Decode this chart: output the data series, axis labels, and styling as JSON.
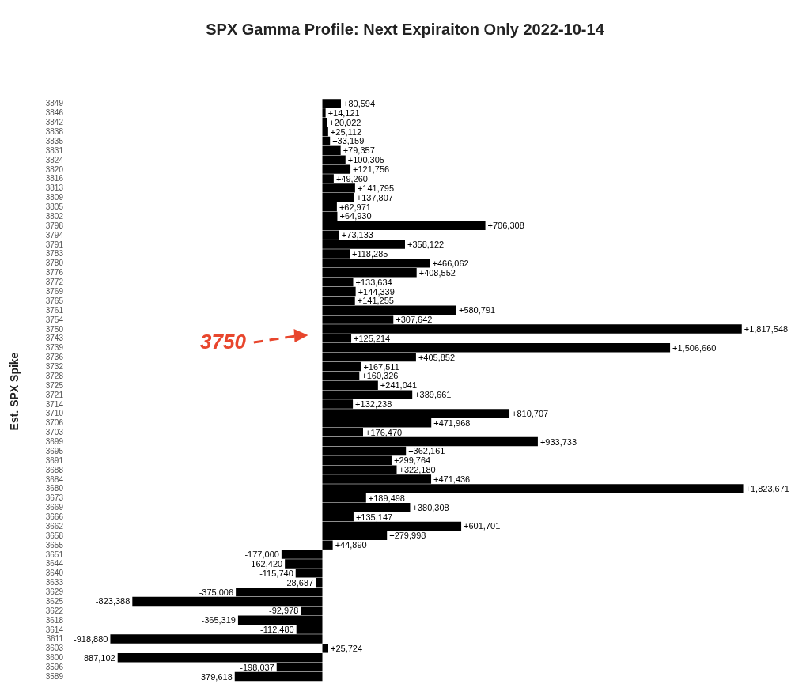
{
  "chart_data": {
    "type": "bar",
    "orientation": "horizontal",
    "title": "SPX Gamma Profile: Next Expiraiton Only 2022-10-14",
    "ylabel": "Est. SPX Spike",
    "categories": [
      "3849",
      "3846",
      "3842",
      "3838",
      "3835",
      "3831",
      "3824",
      "3820",
      "3816",
      "3813",
      "3809",
      "3805",
      "3802",
      "3798",
      "3794",
      "3791",
      "3783",
      "3780",
      "3776",
      "3772",
      "3769",
      "3765",
      "3761",
      "3754",
      "3750",
      "3743",
      "3739",
      "3736",
      "3732",
      "3728",
      "3725",
      "3721",
      "3714",
      "3710",
      "3706",
      "3703",
      "3699",
      "3695",
      "3691",
      "3688",
      "3684",
      "3680",
      "3673",
      "3669",
      "3666",
      "3662",
      "3658",
      "3655",
      "3651",
      "3644",
      "3640",
      "3633",
      "3629",
      "3625",
      "3622",
      "3618",
      "3614",
      "3611",
      "3603",
      "3600",
      "3596",
      "3589"
    ],
    "color": "#000000",
    "values": [
      80594,
      14121,
      20022,
      25112,
      33159,
      79357,
      100305,
      121756,
      49260,
      141795,
      137807,
      62971,
      64930,
      706308,
      73133,
      358122,
      118285,
      466062,
      408552,
      133634,
      144339,
      141255,
      580791,
      307642,
      1817548,
      125214,
      1506660,
      405852,
      167511,
      160326,
      241041,
      389661,
      132238,
      810707,
      471968,
      176470,
      933733,
      362161,
      299764,
      322180,
      471436,
      1823671,
      189498,
      380308,
      135147,
      601701,
      279998,
      44890,
      -177000,
      -162420,
      -115740,
      -28687,
      -375006,
      -823388,
      -92978,
      -365319,
      -112480,
      -918880,
      25724,
      -887102,
      -198037,
      -379618
    ],
    "value_labels": [
      "+80,594",
      "+14,121",
      "+20,022",
      "+25,112",
      "+33,159",
      "+79,357",
      "+100,305",
      "+121,756",
      "+49,260",
      "+141,795",
      "+137,807",
      "+62,971",
      "+64,930",
      "+706,308",
      "+73,133",
      "+358,122",
      "+118,285",
      "+466,062",
      "+408,552",
      "+133,634",
      "+144,339",
      "+141,255",
      "+580,791",
      "+307,642",
      "+1,817,548",
      "+125,214",
      "+1,506,660",
      "+405,852",
      "+167,511",
      "+160,326",
      "+241,041",
      "+389,661",
      "+132,238",
      "+810,707",
      "+471,968",
      "+176,470",
      "+933,733",
      "+362,161",
      "+299,764",
      "+322,180",
      "+471,436",
      "+1,823,671",
      "+189,498",
      "+380,308",
      "+135,147",
      "+601,701",
      "+279,998",
      "+44,890",
      "-177,000",
      "-162,420",
      "-115,740",
      "-28,687",
      "-375,006",
      "-823,388",
      "-92,978",
      "-365,319",
      "-112,480",
      "-918,880",
      "+25,724",
      "-887,102",
      "-198,037",
      "-379,618"
    ],
    "annotations": [
      "3750"
    ],
    "tick_labels": "y",
    "grid": false
  }
}
